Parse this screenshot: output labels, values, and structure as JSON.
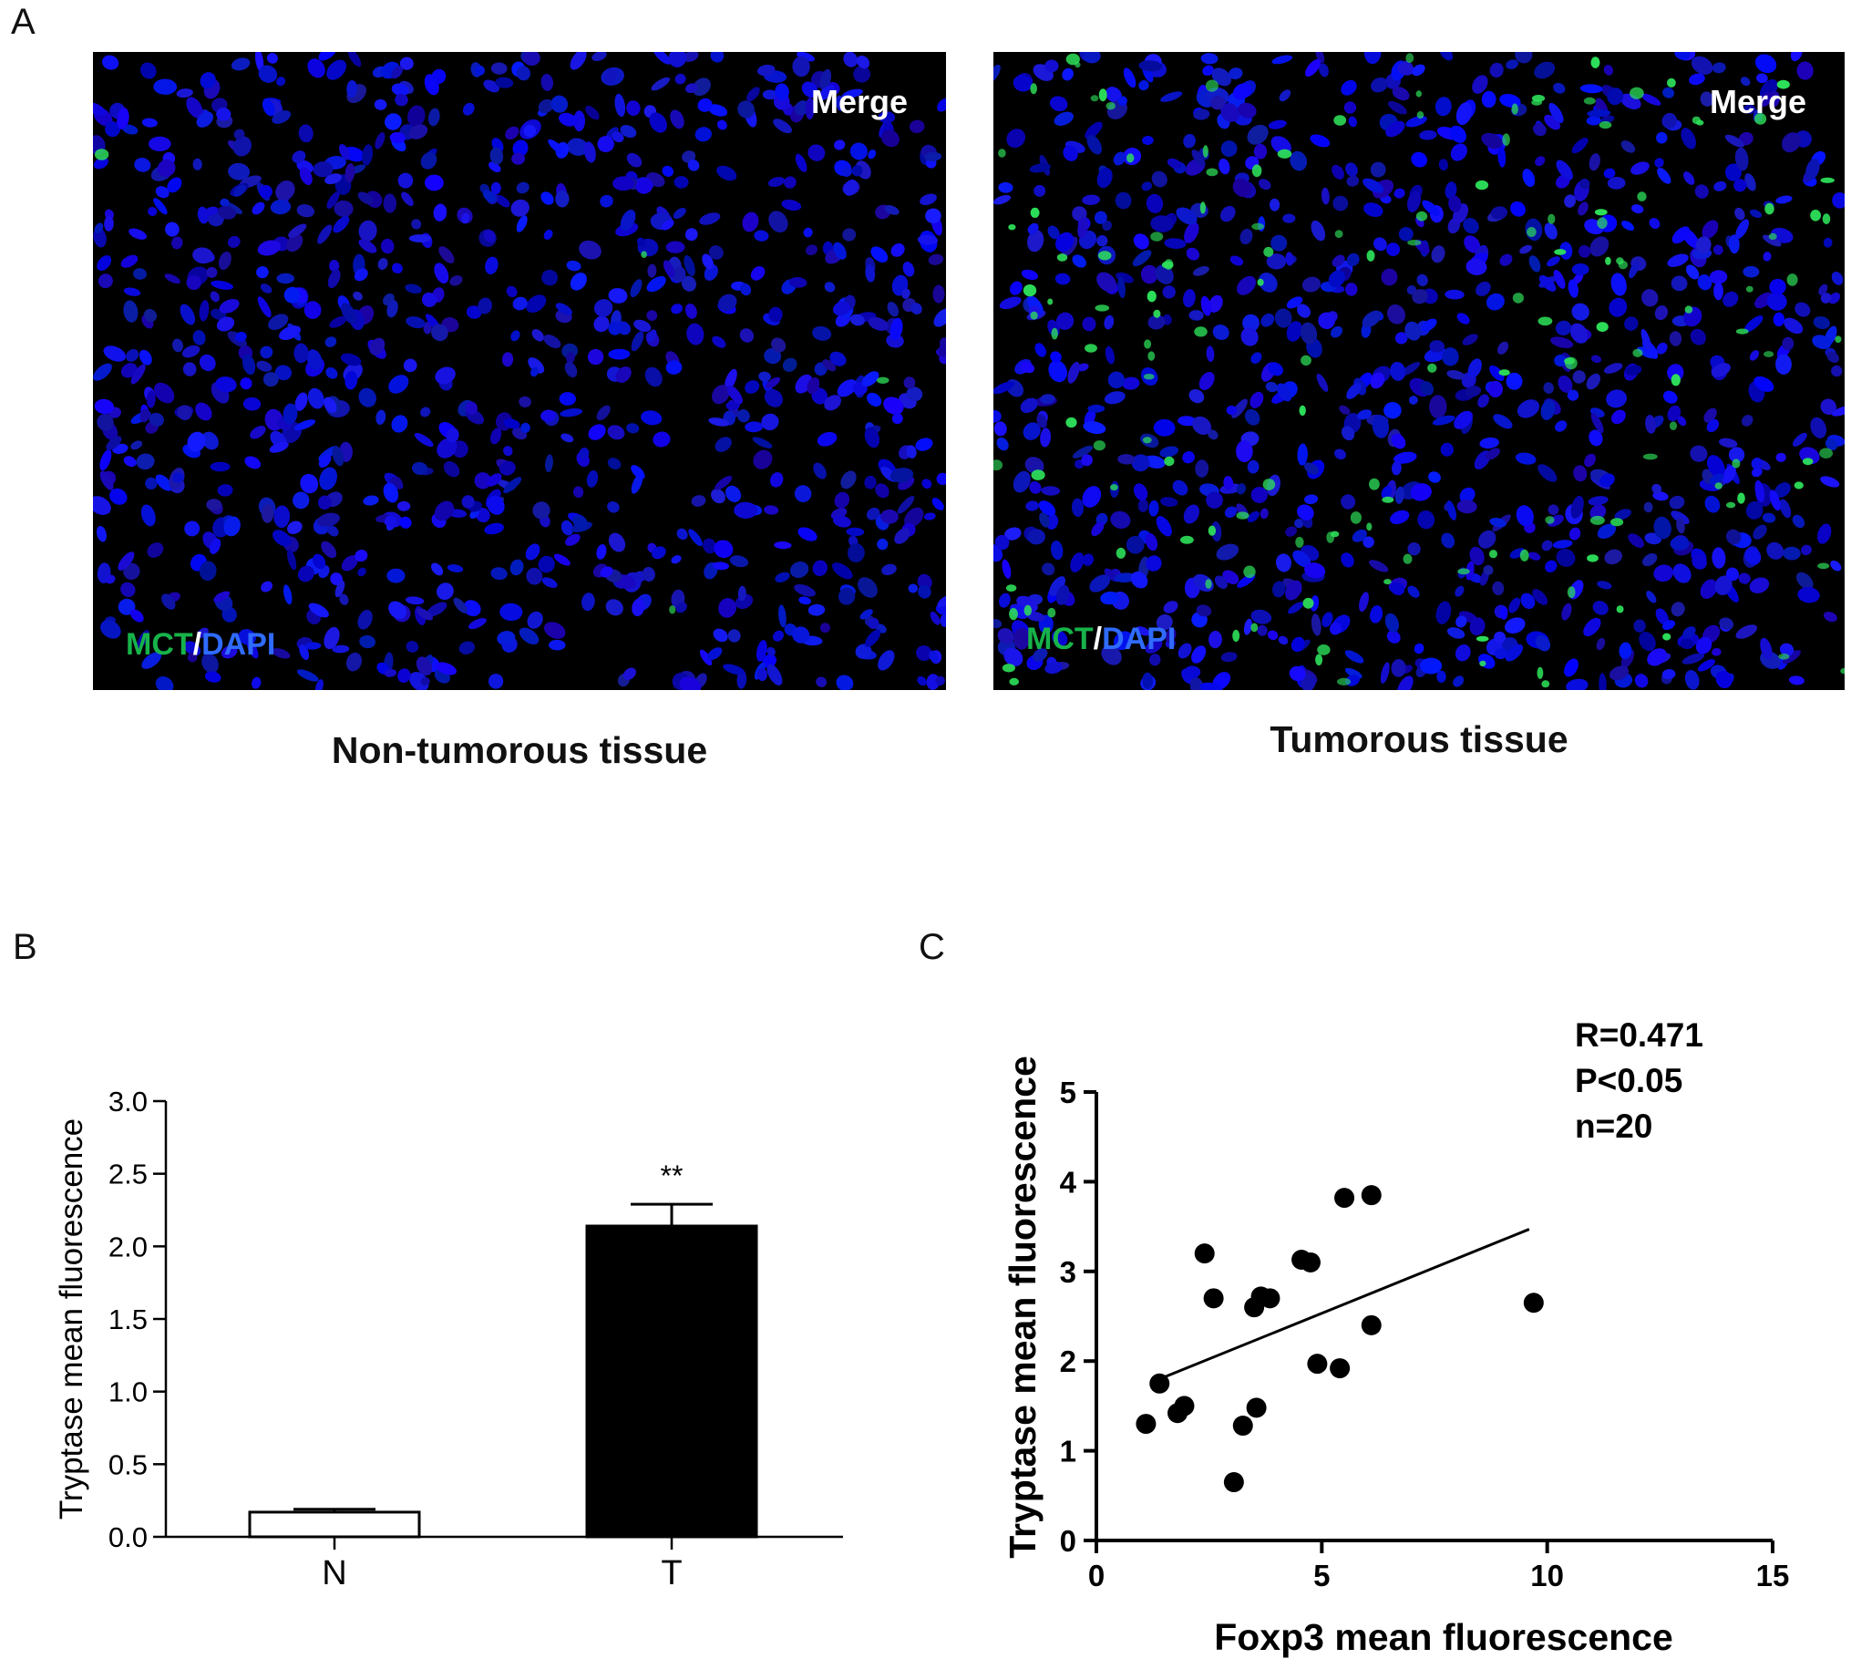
{
  "panels": {
    "a": "A",
    "b": "B",
    "c": "C"
  },
  "images": [
    {
      "merge": "Merge",
      "stain_green": "MCT",
      "stain_sep": "/",
      "stain_blue": "DAPI",
      "caption": "Non-tumorous tissue"
    },
    {
      "merge": "Merge",
      "stain_green": "MCT",
      "stain_sep": "/",
      "stain_blue": "DAPI",
      "caption": "Tumorous tissue"
    }
  ],
  "colors": {
    "nuclei": "#1a1aff",
    "mast_cell": "#2de05a",
    "background": "#000000"
  },
  "chart_data": [
    {
      "type": "bar",
      "categories": [
        "N",
        "T"
      ],
      "values": [
        0.17,
        2.14
      ],
      "errors": [
        0.02,
        0.15
      ],
      "bar_colors": [
        "#ffffff",
        "#000000"
      ],
      "annotations": [
        "",
        "**"
      ],
      "ylabel": "Tryptase mean fluorescence",
      "xlabel": "",
      "ylim": [
        0,
        3.0
      ],
      "yticks": [
        "0.0",
        "0.5",
        "1.0",
        "1.5",
        "2.0",
        "2.5",
        "3.0"
      ]
    },
    {
      "type": "scatter",
      "xlabel": "Foxp3 mean fluorescence",
      "ylabel": "Tryptase mean fluorescence",
      "xlim": [
        0,
        15
      ],
      "ylim": [
        0,
        5
      ],
      "xticks": [
        "0",
        "5",
        "10",
        "15"
      ],
      "yticks": [
        "0",
        "1",
        "2",
        "3",
        "4",
        "5"
      ],
      "points": [
        {
          "x": 1.1,
          "y": 1.3
        },
        {
          "x": 1.4,
          "y": 1.75
        },
        {
          "x": 1.8,
          "y": 1.42
        },
        {
          "x": 1.95,
          "y": 1.5
        },
        {
          "x": 2.4,
          "y": 3.2
        },
        {
          "x": 2.6,
          "y": 2.7
        },
        {
          "x": 3.05,
          "y": 0.65
        },
        {
          "x": 3.25,
          "y": 1.28
        },
        {
          "x": 3.55,
          "y": 1.48
        },
        {
          "x": 3.5,
          "y": 2.6
        },
        {
          "x": 3.65,
          "y": 2.72
        },
        {
          "x": 3.85,
          "y": 2.7
        },
        {
          "x": 4.55,
          "y": 3.13
        },
        {
          "x": 4.75,
          "y": 3.1
        },
        {
          "x": 4.9,
          "y": 1.97
        },
        {
          "x": 5.4,
          "y": 1.92
        },
        {
          "x": 5.5,
          "y": 3.82
        },
        {
          "x": 6.1,
          "y": 3.85
        },
        {
          "x": 6.1,
          "y": 2.4
        },
        {
          "x": 9.7,
          "y": 2.65
        }
      ],
      "fit_line": {
        "x": [
          1.4,
          9.6
        ],
        "y": [
          1.8,
          3.47
        ]
      },
      "stats": [
        "R=0.471",
        "P<0.05",
        "n=20"
      ]
    }
  ]
}
